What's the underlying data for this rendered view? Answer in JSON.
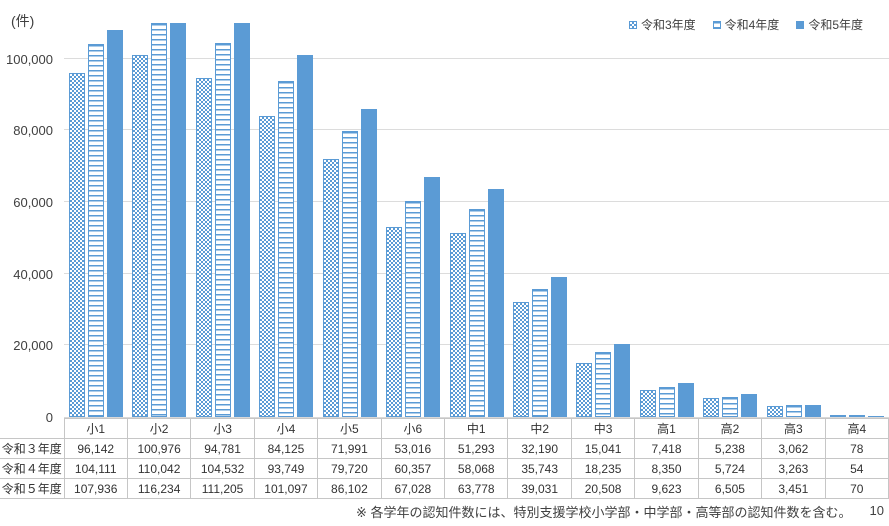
{
  "chart": {
    "unit_label": "(件)",
    "footnote": "※ 各学年の認知件数には、特別支援学校小学部・中学部・高等部の認知件数を含む。",
    "page_number": "10"
  },
  "chart_data": {
    "type": "bar",
    "title": "",
    "ylabel": "(件)",
    "categories": [
      "小1",
      "小2",
      "小3",
      "小4",
      "小5",
      "小6",
      "中1",
      "中2",
      "中3",
      "高1",
      "高2",
      "高3",
      "高4"
    ],
    "series": [
      {
        "name": "令和3年度",
        "pattern": "dots",
        "values": [
          96142,
          100976,
          94781,
          84125,
          71991,
          53016,
          51293,
          32190,
          15041,
          7418,
          5238,
          3062,
          78
        ]
      },
      {
        "name": "令和4年度",
        "pattern": "hlines",
        "values": [
          104111,
          110042,
          104532,
          93749,
          79720,
          60357,
          58068,
          35743,
          18235,
          8350,
          5724,
          3263,
          54
        ]
      },
      {
        "name": "令和5年度",
        "pattern": "solid",
        "values": [
          107936,
          116234,
          111205,
          101097,
          86102,
          67028,
          63778,
          39031,
          20508,
          9623,
          6505,
          3451,
          70
        ]
      }
    ],
    "ylim": [
      0,
      110000
    ],
    "yticks": [
      0,
      20000,
      40000,
      60000,
      80000,
      100000
    ],
    "grid": true,
    "legend_position": "top-right",
    "colors": {
      "accent": "#5B9BD5",
      "gridline": "#DCDCDC",
      "table_border": "#C6C6C6",
      "text": "#404040"
    }
  },
  "table": {
    "row_labels": [
      "令和３年度",
      "令和４年度",
      "令和５年度"
    ]
  }
}
